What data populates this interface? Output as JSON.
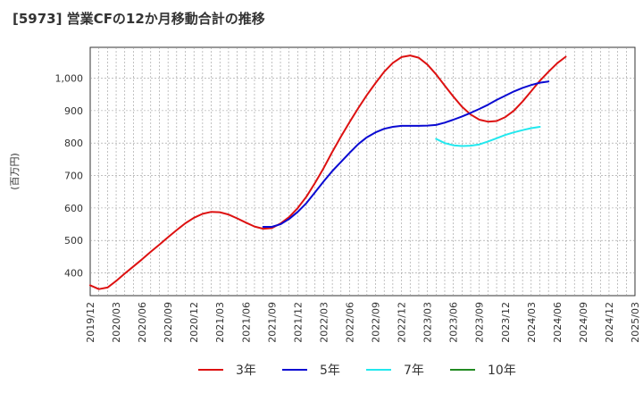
{
  "chart_data": {
    "type": "line",
    "title": "[5973]  営業CFの12か月移動合計の推移",
    "ylabel": "(百万円)",
    "ylim": [
      330,
      1095
    ],
    "yticks": [
      400,
      500,
      600,
      700,
      800,
      900,
      1000
    ],
    "ytick_labels": [
      "400",
      "500",
      "600",
      "700",
      "800",
      "900",
      "1,000"
    ],
    "x_start": "2019/12",
    "x_end": "2025/03",
    "xtick_labels": [
      "2019/12",
      "2020/03",
      "2020/06",
      "2020/09",
      "2020/12",
      "2021/03",
      "2021/06",
      "2021/09",
      "2021/12",
      "2022/03",
      "2022/06",
      "2022/09",
      "2022/12",
      "2023/03",
      "2023/06",
      "2023/09",
      "2023/12",
      "2024/03",
      "2024/06",
      "2024/09",
      "2024/12",
      "2025/03"
    ],
    "grid": true,
    "legend_position": "bottom",
    "series": [
      {
        "name": "3年",
        "color": "#dd1111",
        "points": [
          [
            "2019/12",
            362
          ],
          [
            "2020/01",
            350
          ],
          [
            "2020/02",
            355
          ],
          [
            "2020/03",
            375
          ],
          [
            "2020/04",
            398
          ],
          [
            "2020/05",
            420
          ],
          [
            "2020/06",
            442
          ],
          [
            "2020/07",
            465
          ],
          [
            "2020/08",
            487
          ],
          [
            "2020/09",
            510
          ],
          [
            "2020/10",
            532
          ],
          [
            "2020/11",
            553
          ],
          [
            "2020/12",
            570
          ],
          [
            "2021/01",
            582
          ],
          [
            "2021/02",
            588
          ],
          [
            "2021/03",
            587
          ],
          [
            "2021/04",
            580
          ],
          [
            "2021/05",
            568
          ],
          [
            "2021/06",
            555
          ],
          [
            "2021/07",
            543
          ],
          [
            "2021/08",
            536
          ],
          [
            "2021/09",
            538
          ],
          [
            "2021/10",
            552
          ],
          [
            "2021/11",
            572
          ],
          [
            "2021/12",
            600
          ],
          [
            "2022/01",
            635
          ],
          [
            "2022/02",
            677
          ],
          [
            "2022/03",
            723
          ],
          [
            "2022/04",
            773
          ],
          [
            "2022/05",
            820
          ],
          [
            "2022/06",
            865
          ],
          [
            "2022/07",
            908
          ],
          [
            "2022/08",
            948
          ],
          [
            "2022/09",
            985
          ],
          [
            "2022/10",
            1020
          ],
          [
            "2022/11",
            1047
          ],
          [
            "2022/12",
            1065
          ],
          [
            "2023/01",
            1070
          ],
          [
            "2023/02",
            1063
          ],
          [
            "2023/03",
            1042
          ],
          [
            "2023/04",
            1012
          ],
          [
            "2023/05",
            977
          ],
          [
            "2023/06",
            943
          ],
          [
            "2023/07",
            912
          ],
          [
            "2023/08",
            888
          ],
          [
            "2023/09",
            872
          ],
          [
            "2023/10",
            866
          ],
          [
            "2023/11",
            868
          ],
          [
            "2023/12",
            880
          ],
          [
            "2024/01",
            900
          ],
          [
            "2024/02",
            928
          ],
          [
            "2024/03",
            960
          ],
          [
            "2024/04",
            992
          ],
          [
            "2024/05",
            1020
          ],
          [
            "2024/06",
            1046
          ],
          [
            "2024/07",
            1066
          ]
        ]
      },
      {
        "name": "5年",
        "color": "#0a0ad2",
        "points": [
          [
            "2021/08",
            542
          ],
          [
            "2021/09",
            542
          ],
          [
            "2021/10",
            550
          ],
          [
            "2021/11",
            566
          ],
          [
            "2021/12",
            588
          ],
          [
            "2022/01",
            615
          ],
          [
            "2022/02",
            648
          ],
          [
            "2022/03",
            682
          ],
          [
            "2022/04",
            714
          ],
          [
            "2022/05",
            742
          ],
          [
            "2022/06",
            770
          ],
          [
            "2022/07",
            797
          ],
          [
            "2022/08",
            818
          ],
          [
            "2022/09",
            833
          ],
          [
            "2022/10",
            844
          ],
          [
            "2022/11",
            850
          ],
          [
            "2022/12",
            853
          ],
          [
            "2023/01",
            853
          ],
          [
            "2023/02",
            853
          ],
          [
            "2023/03",
            854
          ],
          [
            "2023/04",
            856
          ],
          [
            "2023/05",
            863
          ],
          [
            "2023/06",
            872
          ],
          [
            "2023/07",
            882
          ],
          [
            "2023/08",
            893
          ],
          [
            "2023/09",
            905
          ],
          [
            "2023/10",
            918
          ],
          [
            "2023/11",
            933
          ],
          [
            "2023/12",
            946
          ],
          [
            "2024/01",
            959
          ],
          [
            "2024/02",
            970
          ],
          [
            "2024/03",
            979
          ],
          [
            "2024/04",
            986
          ],
          [
            "2024/05",
            990
          ]
        ]
      },
      {
        "name": "7年",
        "color": "#22e8ee",
        "points": [
          [
            "2023/04",
            813
          ],
          [
            "2023/05",
            800
          ],
          [
            "2023/06",
            793
          ],
          [
            "2023/07",
            791
          ],
          [
            "2023/08",
            792
          ],
          [
            "2023/09",
            796
          ],
          [
            "2023/10",
            805
          ],
          [
            "2023/11",
            815
          ],
          [
            "2023/12",
            825
          ],
          [
            "2024/01",
            833
          ],
          [
            "2024/02",
            840
          ],
          [
            "2024/03",
            846
          ],
          [
            "2024/04",
            850
          ]
        ]
      },
      {
        "name": "10年",
        "color": "#228b22",
        "points": []
      }
    ]
  }
}
